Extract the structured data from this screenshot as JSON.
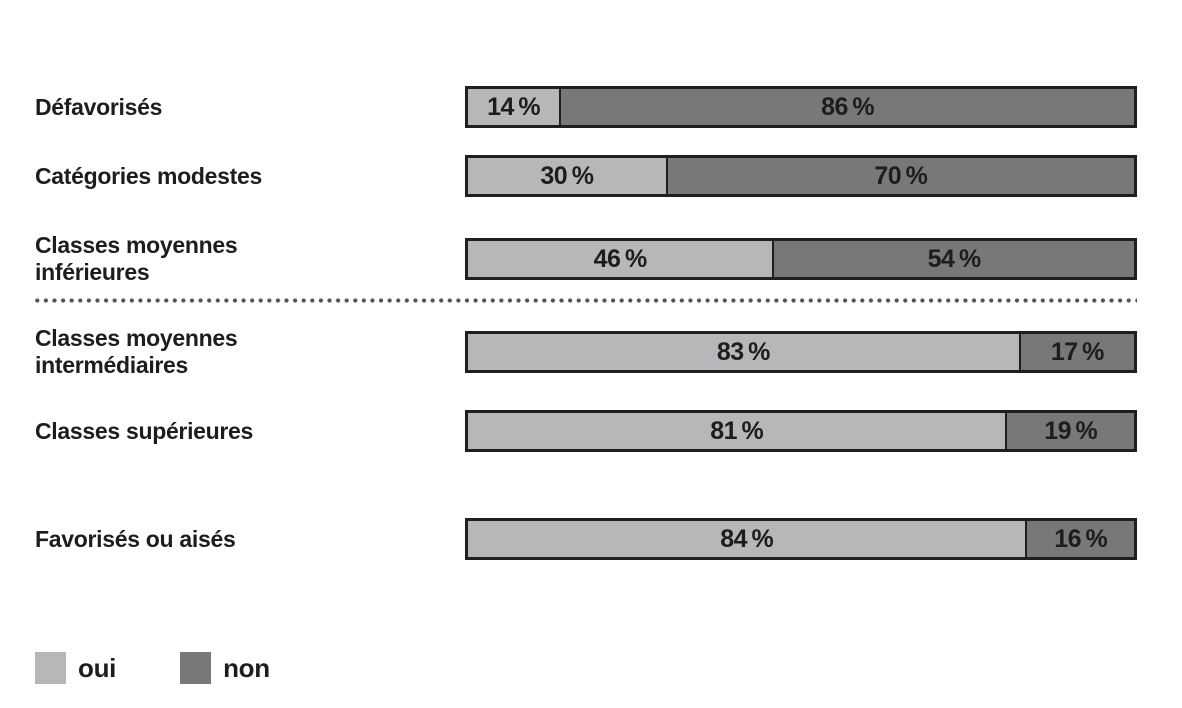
{
  "chart_data": {
    "type": "bar",
    "orientation": "horizontal",
    "stacked": true,
    "title": "",
    "xlabel": "",
    "ylabel": "",
    "unit": "%",
    "value_suffix": " %",
    "xlim": [
      0,
      100
    ],
    "grid": false,
    "categories": [
      "Défavorisés",
      "Catégories modestes",
      "Classes moyennes inférieures",
      "Classes moyennes intermédiaires",
      "Classes supérieures",
      "Favorisés ou aisés"
    ],
    "category_lines": [
      [
        "Défavorisés"
      ],
      [
        "Catégories modestes"
      ],
      [
        "Classes moyennes",
        "inférieures"
      ],
      [
        "Classes moyennes",
        "intermédiaires"
      ],
      [
        "Classes supérieures"
      ],
      [
        "Favorisés ou aisés"
      ]
    ],
    "series": [
      {
        "name": "oui",
        "color": "#b7b7b9",
        "values": [
          14,
          30,
          46,
          83,
          81,
          84
        ]
      },
      {
        "name": "non",
        "color": "#78787b",
        "values": [
          86,
          70,
          54,
          17,
          19,
          16
        ]
      }
    ],
    "value_labels": {
      "oui": [
        "14 %",
        "30 %",
        "46 %",
        "83 %",
        "81 %",
        "84 %"
      ],
      "non": [
        "86 %",
        "70 %",
        "54 %",
        "17 %",
        "19 %",
        "16 %"
      ]
    },
    "separator_after_category_index": 2,
    "separator_style": "dotted",
    "bar_border_color": "#1f1f1f",
    "label_color": "#1d1d1b",
    "legend": {
      "position": "bottom-left",
      "items": [
        {
          "label": "oui",
          "color": "#b7b7b9"
        },
        {
          "label": "non",
          "color": "#78787b"
        }
      ]
    }
  }
}
